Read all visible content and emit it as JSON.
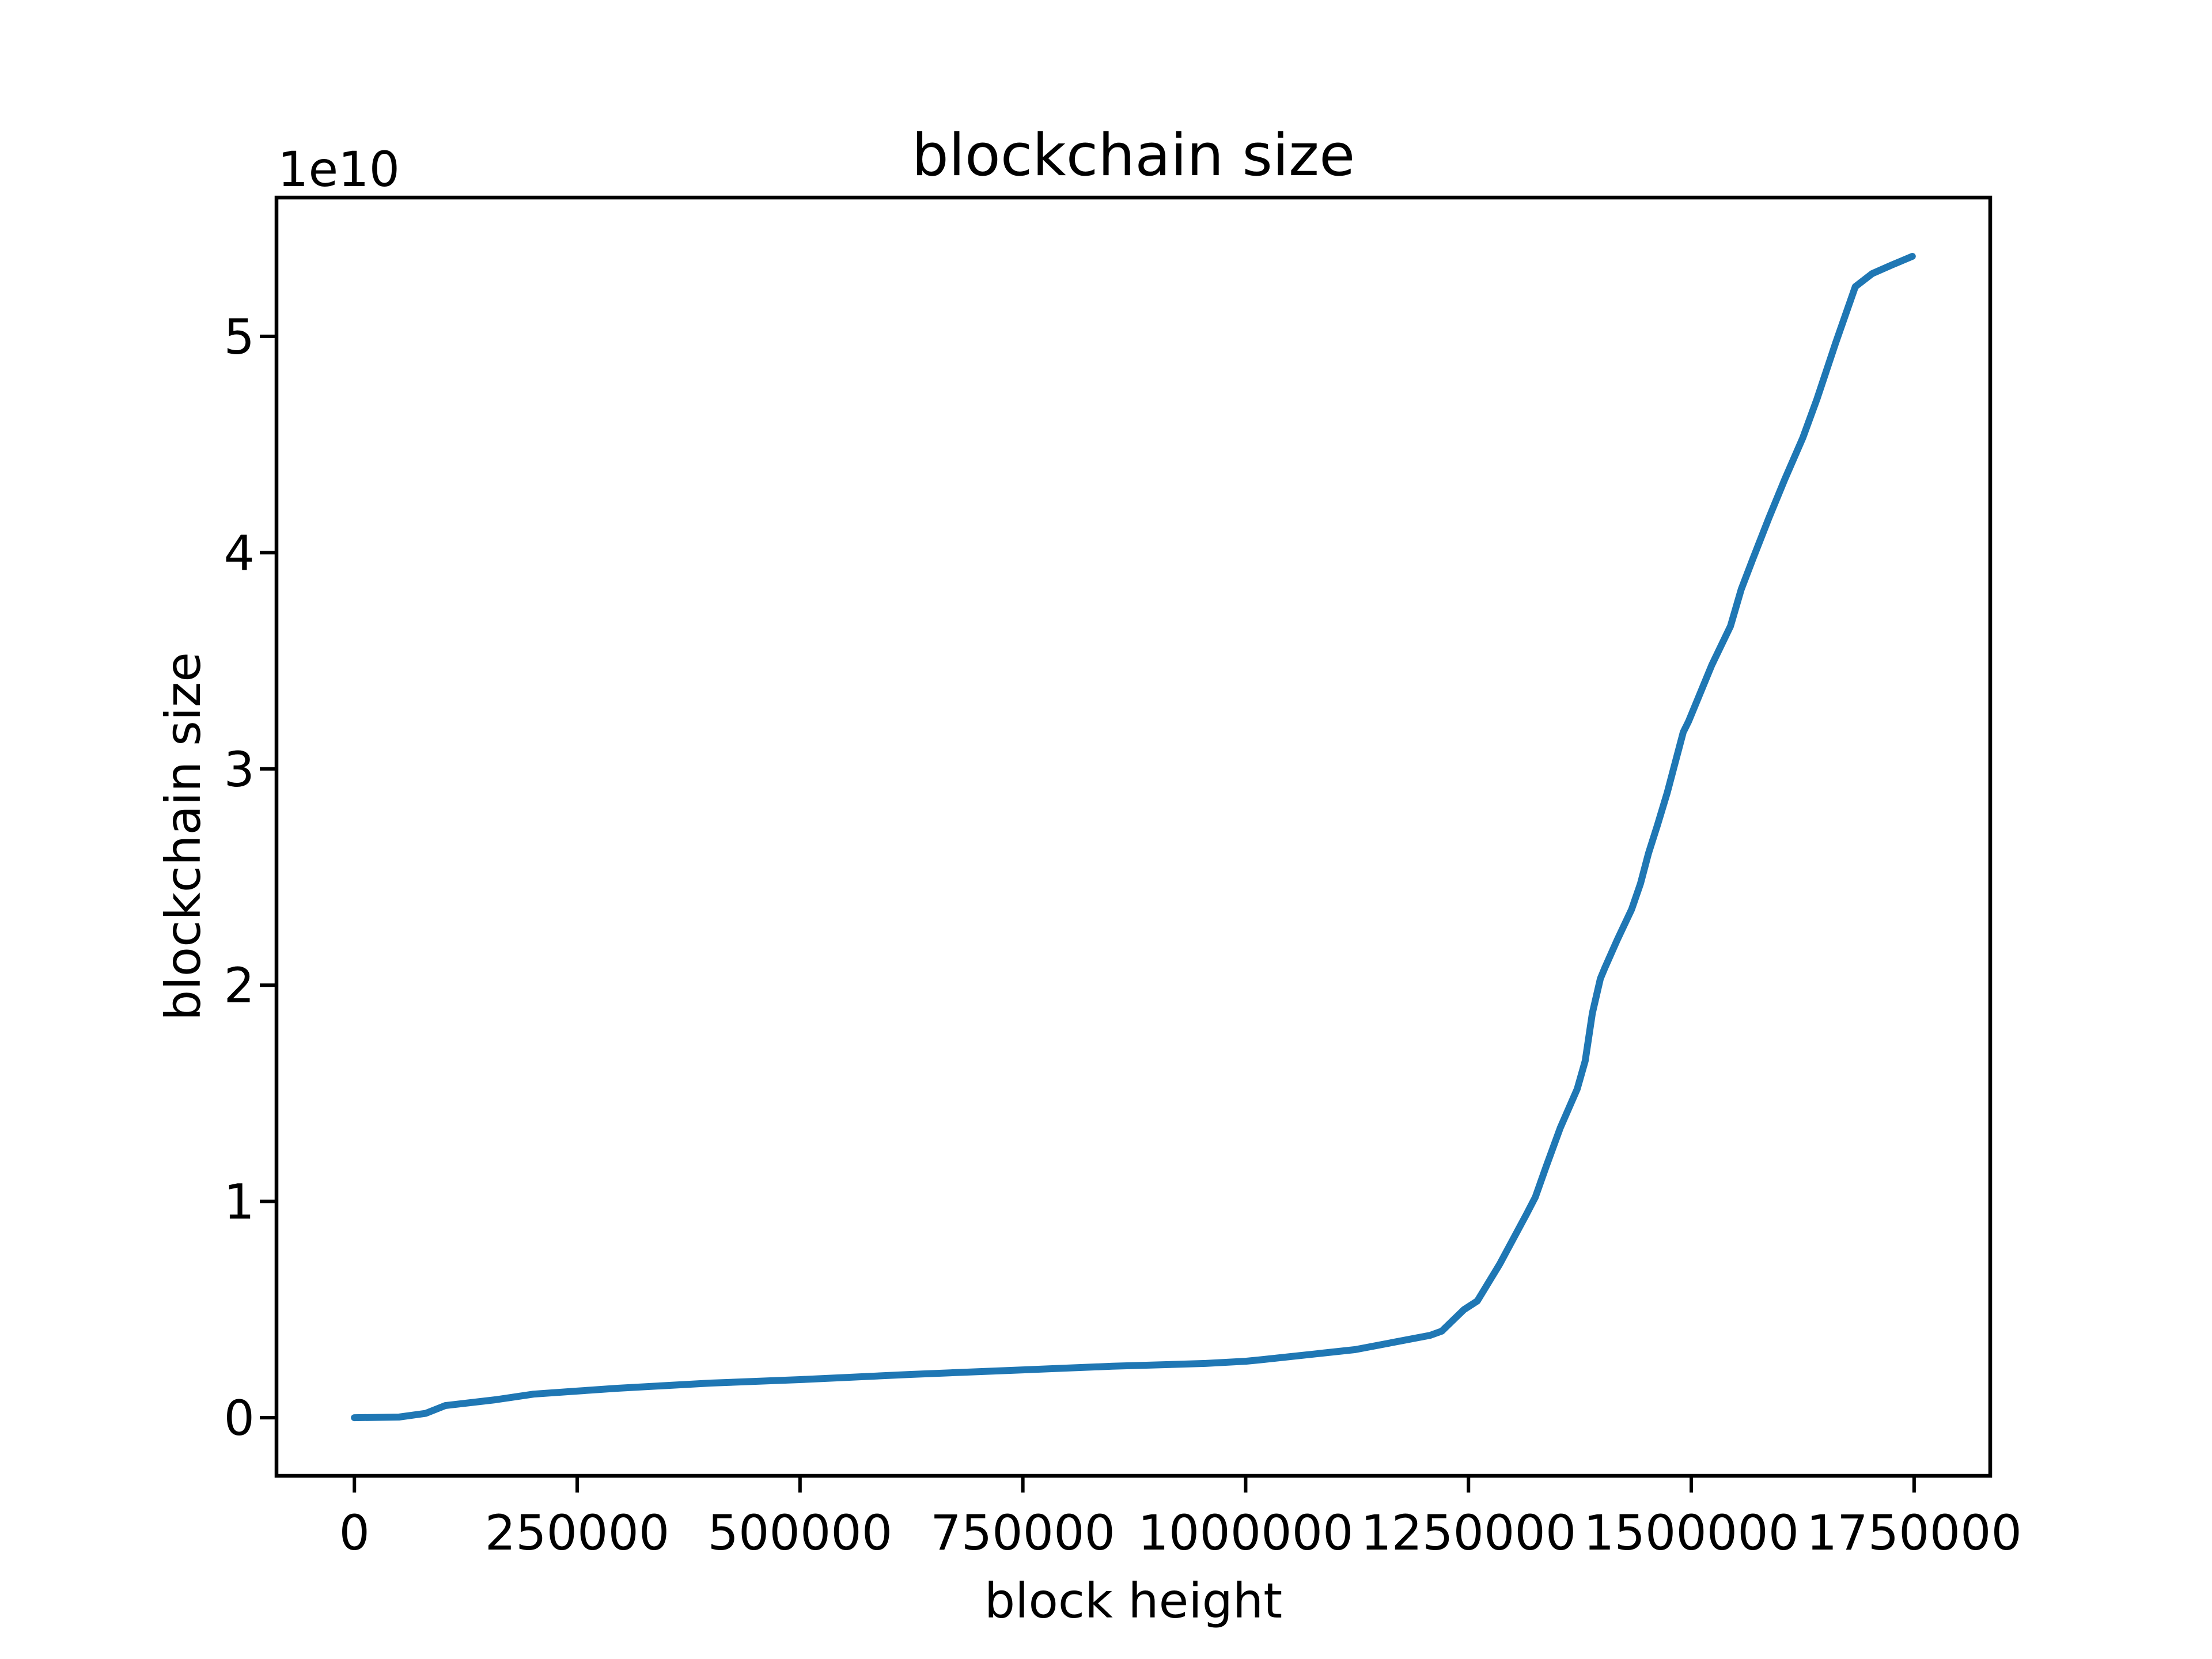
{
  "figure": {
    "background": "#ffffff",
    "foreground": "#000000"
  },
  "chart_data": {
    "type": "line",
    "title": "blockchain size",
    "xlabel": "block height",
    "ylabel": "blockchain size",
    "y_offset_label": "1e10",
    "grid": false,
    "legend": "none",
    "line_color": "#1f77b4",
    "xlim": [
      -87400,
      1835400
    ],
    "ylim": [
      -2687000000,
      56417000000
    ],
    "x_ticks": [
      0,
      250000,
      500000,
      750000,
      1000000,
      1250000,
      1500000,
      1750000
    ],
    "x_tick_labels": [
      "0",
      "250000",
      "500000",
      "750000",
      "1000000",
      "1250000",
      "1500000",
      "1750000"
    ],
    "y_ticks": [
      0,
      10000000000,
      20000000000,
      30000000000,
      40000000000,
      50000000000
    ],
    "y_tick_labels": [
      "0",
      "1",
      "2",
      "3",
      "4",
      "5"
    ],
    "series": [
      {
        "name": "blockchain size",
        "points": [
          [
            0,
            0
          ],
          [
            50000,
            30000000.0
          ],
          [
            80000,
            200000000.0
          ],
          [
            102000,
            560000000.0
          ],
          [
            158000,
            830000000.0
          ],
          [
            201000,
            1090000000.0
          ],
          [
            250000,
            1230000000.0
          ],
          [
            294000,
            1360000000.0
          ],
          [
            400000,
            1600000000.0
          ],
          [
            500000,
            1760000000.0
          ],
          [
            624000,
            2000000000.0
          ],
          [
            750000,
            2210000000.0
          ],
          [
            850000,
            2380000000.0
          ],
          [
            955000,
            2510000000.0
          ],
          [
            1000000,
            2610000000.0
          ],
          [
            1015000,
            2670000000.0
          ],
          [
            1123000,
            3150000000.0
          ],
          [
            1207000,
            3810000000.0
          ],
          [
            1220000,
            4000000000.0
          ],
          [
            1245000,
            5000000000.0
          ],
          [
            1260000,
            5400000000.0
          ],
          [
            1285000,
            7100000000.0
          ],
          [
            1315000,
            9400000000.0
          ],
          [
            1325000,
            10200000000.0
          ],
          [
            1337000,
            11600000000.0
          ],
          [
            1353000,
            13400000000.0
          ],
          [
            1372000,
            15200000000.0
          ],
          [
            1381000,
            16500000000.0
          ],
          [
            1389000,
            18700000000.0
          ],
          [
            1398000,
            20300000000.0
          ],
          [
            1403000,
            20800000000.0
          ],
          [
            1417000,
            22100000000.0
          ],
          [
            1433000,
            23500000000.0
          ],
          [
            1443000,
            24700000000.0
          ],
          [
            1452000,
            26100000000.0
          ],
          [
            1462000,
            27400000000.0
          ],
          [
            1473000,
            28900000000.0
          ],
          [
            1482000,
            30300000000.0
          ],
          [
            1491000,
            31700000000.0
          ],
          [
            1497000,
            32200000000.0
          ],
          [
            1523000,
            34800000000.0
          ],
          [
            1544000,
            36600000000.0
          ],
          [
            1556000,
            38300000000.0
          ],
          [
            1569000,
            39700000000.0
          ],
          [
            1587000,
            41600000000.0
          ],
          [
            1605000,
            43400000000.0
          ],
          [
            1625000,
            45300000000.0
          ],
          [
            1641000,
            47100000000.0
          ],
          [
            1662000,
            49700000000.0
          ],
          [
            1684000,
            52300000000.0
          ],
          [
            1703000,
            52900000000.0
          ],
          [
            1725000,
            53300000000.0
          ],
          [
            1748000,
            53700000000.0
          ]
        ]
      }
    ]
  }
}
